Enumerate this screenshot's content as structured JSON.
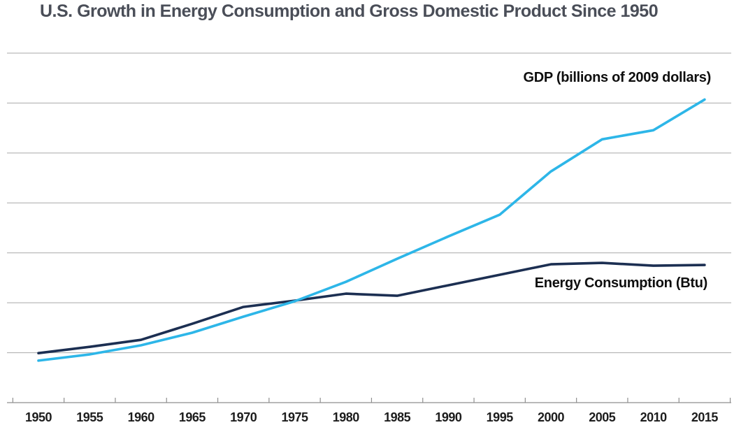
{
  "chart_data": {
    "type": "line",
    "title": "U.S. Growth in Energy Consumption and Gross Domestic Product Since 1950",
    "x": [
      1950,
      1955,
      1960,
      1965,
      1970,
      1975,
      1980,
      1985,
      1990,
      1995,
      2000,
      2005,
      2010,
      2015
    ],
    "x_tick_labels": [
      "1950",
      "1955",
      "1960",
      "1965",
      "1970",
      "1975",
      "1980",
      "1985",
      "1990",
      "1995",
      "2000",
      "2005",
      "2010",
      "2015"
    ],
    "series": [
      {
        "name": "GDP",
        "label": "GDP  (billions of 2009 dollars)",
        "unit": "billions of 2009 dollars",
        "color": "#2db6e8",
        "values": [
          2270,
          2610,
          3100,
          3780,
          4650,
          5480,
          6530,
          7780,
          8990,
          10160,
          12500,
          14240,
          14730,
          16390
        ]
      },
      {
        "name": "Energy Consumption",
        "label": "Energy Consumption (Btu)",
        "unit": "quadrillion Btu",
        "color": "#1c2f52",
        "values": [
          35.4,
          39.9,
          44.9,
          56.4,
          68.4,
          72.9,
          77.9,
          76.4,
          83.9,
          91.4,
          98.9,
          99.9,
          97.9,
          98.4
        ]
      }
    ],
    "layout": {
      "y_axis_labeled": false,
      "gridline_count": 7,
      "gridline_color": "#a9a9a9",
      "axis_color": "#8f8f8f",
      "baseline_value": 0,
      "units_per_gridline": {
        "GDP": 2700,
        "Energy Consumption": 35.7
      },
      "legend": "inline-labels-right",
      "x_range": [
        1950,
        2015
      ],
      "grid": true
    },
    "colors": {
      "title": "#4a4e58",
      "tick_label": "#1d1d1d",
      "background": "#ffffff"
    }
  }
}
